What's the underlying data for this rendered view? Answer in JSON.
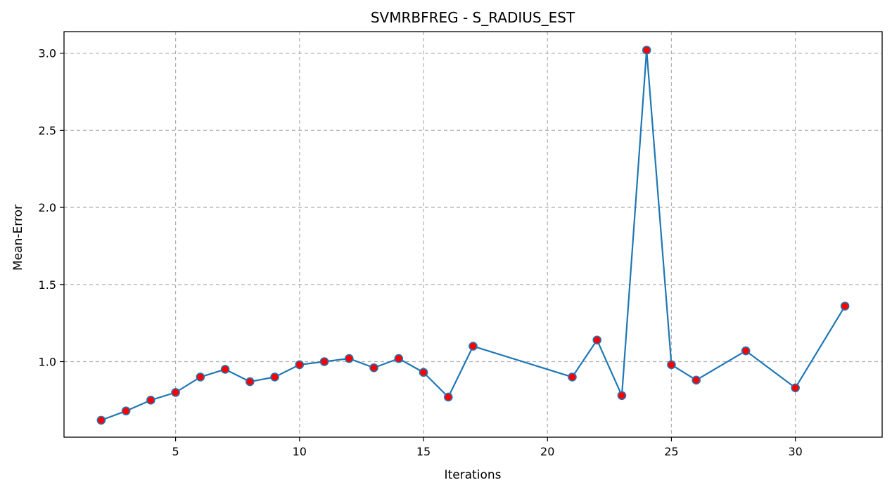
{
  "chart_data": {
    "type": "line",
    "title": "SVMRBFREG - S_RADIUS_EST",
    "xlabel": "Iterations",
    "ylabel": "Mean-Error",
    "x": [
      2,
      3,
      4,
      5,
      6,
      7,
      8,
      9,
      10,
      11,
      12,
      13,
      14,
      15,
      16,
      17,
      21,
      22,
      23,
      24,
      25,
      26,
      28,
      30,
      32
    ],
    "series": [
      {
        "values": [
          0.62,
          0.68,
          0.75,
          0.8,
          0.9,
          0.95,
          0.87,
          0.9,
          0.98,
          1.0,
          1.02,
          0.96,
          1.02,
          0.93,
          0.77,
          1.1,
          0.9,
          1.14,
          0.78,
          3.02,
          0.98,
          0.88,
          1.07,
          0.83,
          1.36
        ]
      }
    ],
    "xticks": [
      5,
      10,
      15,
      20,
      25,
      30
    ],
    "yticks": [
      1.0,
      1.5,
      2.0,
      2.5,
      3.0
    ],
    "xlim": [
      0.5,
      33.5
    ],
    "ylim": [
      0.51,
      3.14
    ],
    "grid": true,
    "line_color": "#1f77b4",
    "marker_color": "#ff0000",
    "marker_edge_color": "#1f77b4"
  }
}
